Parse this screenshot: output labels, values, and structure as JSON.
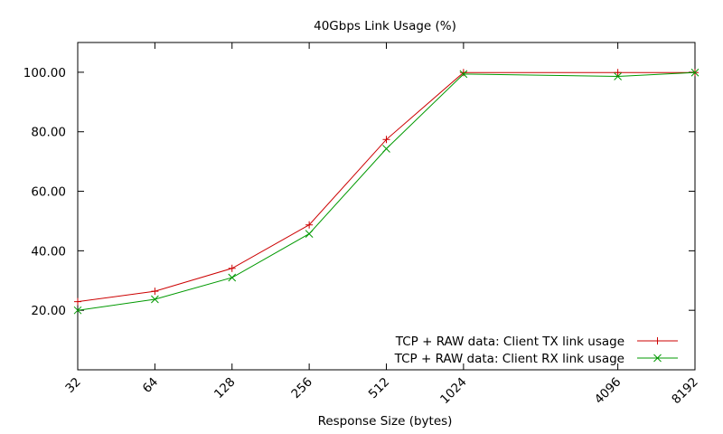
{
  "chart_data": {
    "type": "line",
    "title": "40Gbps Link Usage (%)",
    "xlabel": "Response Size (bytes)",
    "ylabel": "",
    "x_scale": "log2",
    "x": [
      32,
      64,
      128,
      256,
      512,
      1024,
      4096,
      8192
    ],
    "x_tick_labels": [
      "32",
      "64",
      "128",
      "256",
      "512",
      "1024",
      "4096",
      "8192"
    ],
    "xlim": [
      32,
      8192
    ],
    "ylim": [
      0,
      110
    ],
    "y_ticks": [
      20,
      40,
      60,
      80,
      100
    ],
    "y_tick_labels": [
      "20.00",
      "40.00",
      "60.00",
      "80.00",
      "100.00"
    ],
    "grid": false,
    "legend_position": "bottom-right",
    "series": [
      {
        "name": "TCP + RAW data: Client TX link usage",
        "color": "#cc0000",
        "marker": "plus",
        "values": [
          22.9,
          26.4,
          34.1,
          48.7,
          77.4,
          99.9,
          99.9,
          99.9
        ]
      },
      {
        "name": "TCP + RAW data: Client RX link usage",
        "color": "#009900",
        "marker": "cross",
        "values": [
          20.0,
          23.7,
          31.0,
          45.7,
          74.3,
          99.4,
          98.6,
          99.9
        ]
      }
    ]
  }
}
